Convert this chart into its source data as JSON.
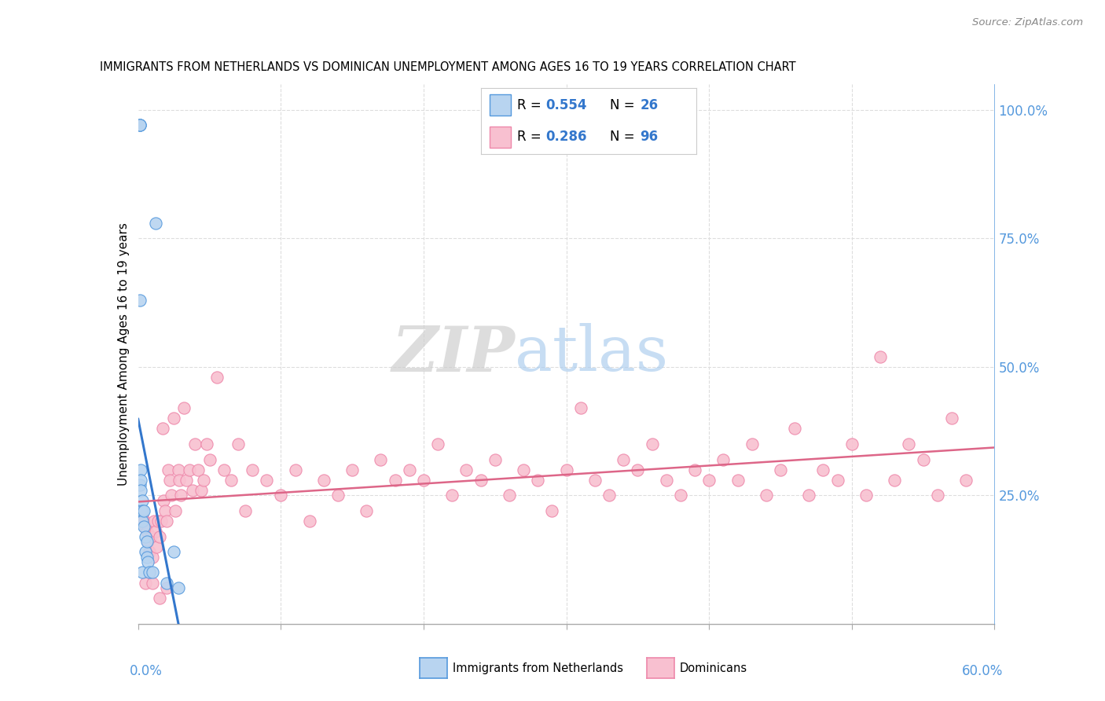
{
  "title": "IMMIGRANTS FROM NETHERLANDS VS DOMINICAN UNEMPLOYMENT AMONG AGES 16 TO 19 YEARS CORRELATION CHART",
  "source": "Source: ZipAtlas.com",
  "ylabel": "Unemployment Among Ages 16 to 19 years",
  "legend_label_blue": "Immigrants from Netherlands",
  "legend_label_pink": "Dominicans",
  "blue_fill": "#b8d4f0",
  "blue_edge": "#5599dd",
  "pink_fill": "#f8c0d0",
  "pink_edge": "#ee88aa",
  "blue_line_color": "#3377cc",
  "pink_line_color": "#dd6688",
  "watermark_ZIP_color": "#cccccc",
  "watermark_atlas_color": "#aaccee",
  "right_tick_color": "#5599dd",
  "xleft_label": "0.0%",
  "xright_label": "60.0%",
  "blue_R": "0.554",
  "blue_N": "26",
  "pink_R": "0.286",
  "pink_N": "96",
  "blue_x": [
    0.001,
    0.001,
    0.001,
    0.001,
    0.001,
    0.002,
    0.002,
    0.002,
    0.002,
    0.003,
    0.003,
    0.003,
    0.003,
    0.004,
    0.004,
    0.005,
    0.005,
    0.006,
    0.006,
    0.007,
    0.008,
    0.01,
    0.012,
    0.02,
    0.025,
    0.028
  ],
  "blue_y": [
    0.97,
    0.97,
    0.97,
    0.63,
    0.27,
    0.3,
    0.28,
    0.26,
    0.22,
    0.24,
    0.22,
    0.2,
    0.1,
    0.22,
    0.19,
    0.17,
    0.14,
    0.16,
    0.13,
    0.12,
    0.1,
    0.1,
    0.78,
    0.08,
    0.14,
    0.07
  ],
  "pink_x": [
    0.003,
    0.004,
    0.005,
    0.006,
    0.007,
    0.008,
    0.009,
    0.01,
    0.011,
    0.012,
    0.013,
    0.014,
    0.015,
    0.016,
    0.017,
    0.018,
    0.019,
    0.02,
    0.021,
    0.022,
    0.023,
    0.025,
    0.026,
    0.028,
    0.029,
    0.03,
    0.032,
    0.034,
    0.036,
    0.038,
    0.04,
    0.042,
    0.044,
    0.046,
    0.048,
    0.05,
    0.055,
    0.06,
    0.065,
    0.07,
    0.075,
    0.08,
    0.09,
    0.1,
    0.11,
    0.12,
    0.13,
    0.14,
    0.15,
    0.16,
    0.17,
    0.18,
    0.19,
    0.2,
    0.21,
    0.22,
    0.23,
    0.24,
    0.25,
    0.26,
    0.27,
    0.28,
    0.29,
    0.3,
    0.31,
    0.32,
    0.33,
    0.34,
    0.35,
    0.36,
    0.37,
    0.38,
    0.39,
    0.4,
    0.41,
    0.42,
    0.43,
    0.44,
    0.45,
    0.46,
    0.47,
    0.48,
    0.49,
    0.5,
    0.51,
    0.52,
    0.53,
    0.54,
    0.55,
    0.56,
    0.57,
    0.58,
    0.005,
    0.01,
    0.015,
    0.02
  ],
  "pink_y": [
    0.21,
    0.2,
    0.19,
    0.18,
    0.16,
    0.14,
    0.17,
    0.13,
    0.2,
    0.18,
    0.15,
    0.2,
    0.17,
    0.2,
    0.38,
    0.24,
    0.22,
    0.2,
    0.3,
    0.28,
    0.25,
    0.4,
    0.22,
    0.3,
    0.28,
    0.25,
    0.42,
    0.28,
    0.3,
    0.26,
    0.35,
    0.3,
    0.26,
    0.28,
    0.35,
    0.32,
    0.48,
    0.3,
    0.28,
    0.35,
    0.22,
    0.3,
    0.28,
    0.25,
    0.3,
    0.2,
    0.28,
    0.25,
    0.3,
    0.22,
    0.32,
    0.28,
    0.3,
    0.28,
    0.35,
    0.25,
    0.3,
    0.28,
    0.32,
    0.25,
    0.3,
    0.28,
    0.22,
    0.3,
    0.42,
    0.28,
    0.25,
    0.32,
    0.3,
    0.35,
    0.28,
    0.25,
    0.3,
    0.28,
    0.32,
    0.28,
    0.35,
    0.25,
    0.3,
    0.38,
    0.25,
    0.3,
    0.28,
    0.35,
    0.25,
    0.52,
    0.28,
    0.35,
    0.32,
    0.25,
    0.4,
    0.28,
    0.08,
    0.08,
    0.05,
    0.07
  ]
}
